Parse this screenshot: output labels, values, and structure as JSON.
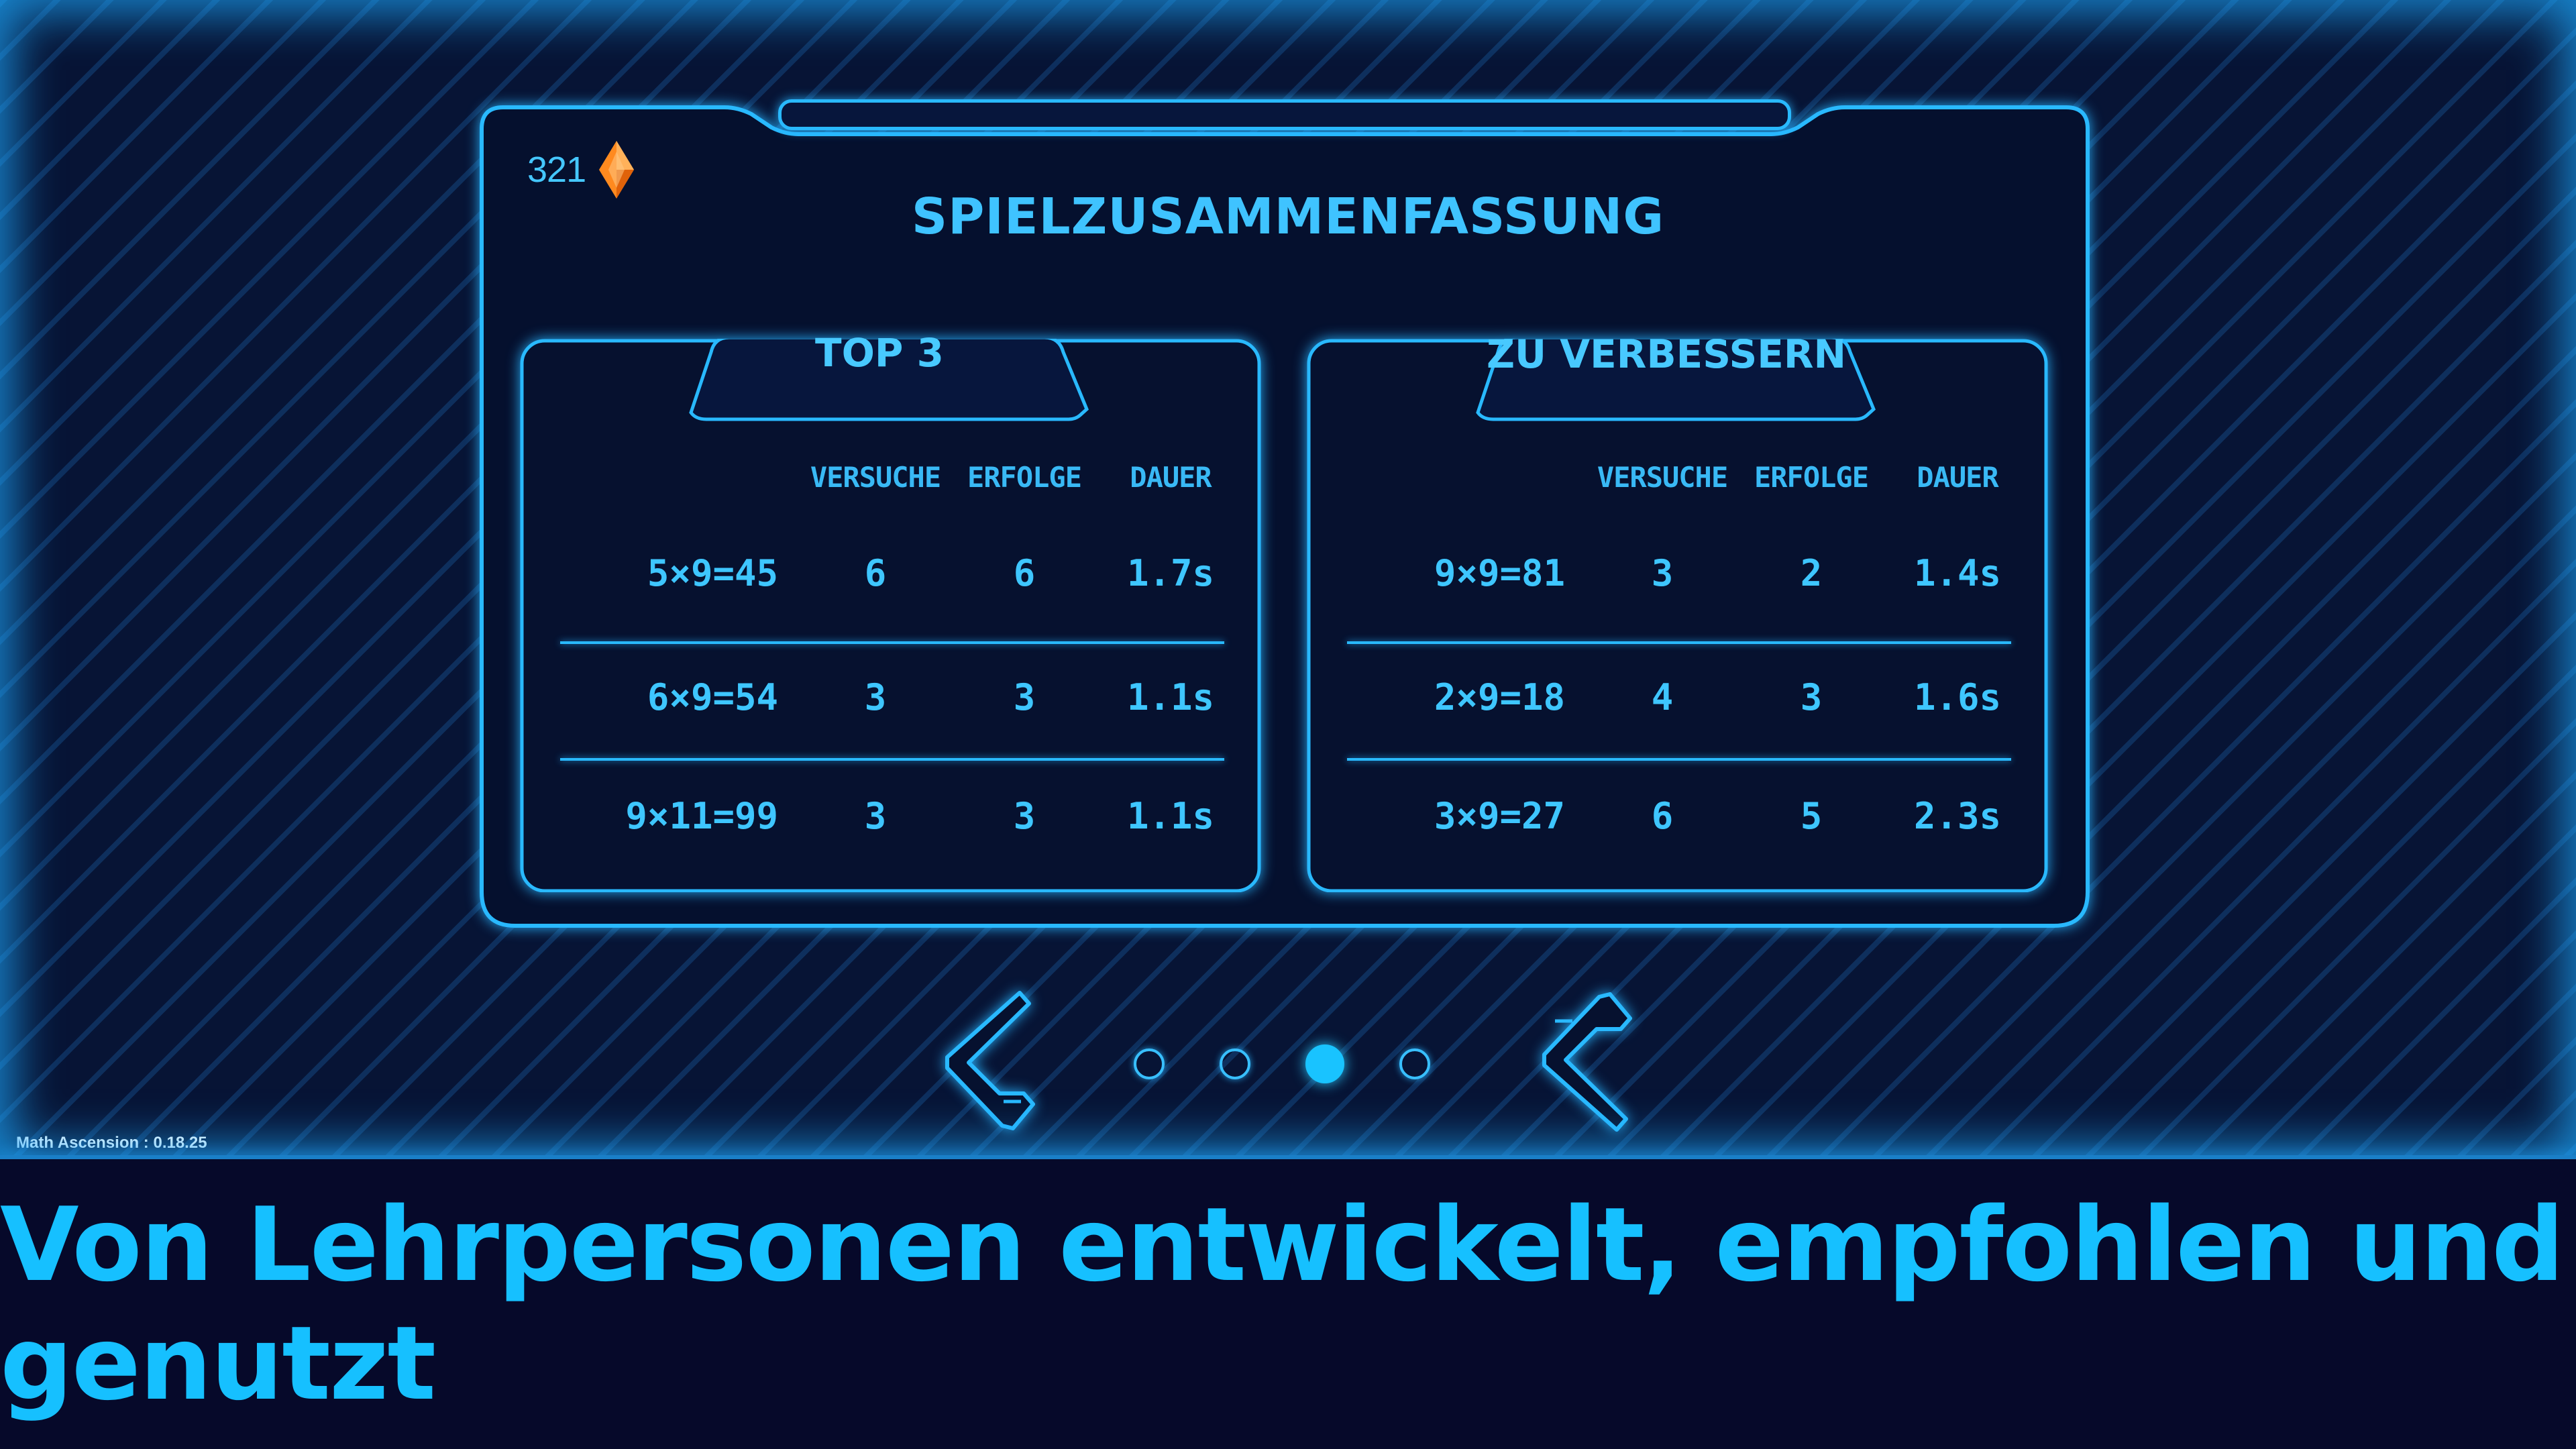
{
  "currency": {
    "value": "321",
    "icon": "orange-gem-icon"
  },
  "summary": {
    "title": "SPIELZUSAMMENFASSUNG"
  },
  "columns": [
    "VERSUCHE",
    "ERFOLGE",
    "DAUER"
  ],
  "top3": {
    "title": "TOP 3",
    "rows": [
      {
        "equation": "5×9=45",
        "attempts": "6",
        "successes": "6",
        "duration": "1.7s"
      },
      {
        "equation": "6×9=54",
        "attempts": "3",
        "successes": "3",
        "duration": "1.1s"
      },
      {
        "equation": "9×11=99",
        "attempts": "3",
        "successes": "3",
        "duration": "1.1s"
      }
    ]
  },
  "improve": {
    "title": "ZU VERBESSERN",
    "rows": [
      {
        "equation": "9×9=81",
        "attempts": "3",
        "successes": "2",
        "duration": "1.4s"
      },
      {
        "equation": "2×9=18",
        "attempts": "4",
        "successes": "3",
        "duration": "1.6s"
      },
      {
        "equation": "3×9=27",
        "attempts": "6",
        "successes": "5",
        "duration": "2.3s"
      }
    ]
  },
  "pagination": {
    "total": 4,
    "active_index": 2
  },
  "icons": {
    "prev": "chevron-left-icon",
    "next": "chevron-right-icon"
  },
  "version": "Math Ascension : 0.18.25",
  "tagline": "Von Lehrpersonen entwickelt, empfohlen und genutzt",
  "colors": {
    "accent": "#29b9ff",
    "text": "#3ec6ff",
    "gem": "#ff8a1f",
    "background": "#06092a"
  }
}
